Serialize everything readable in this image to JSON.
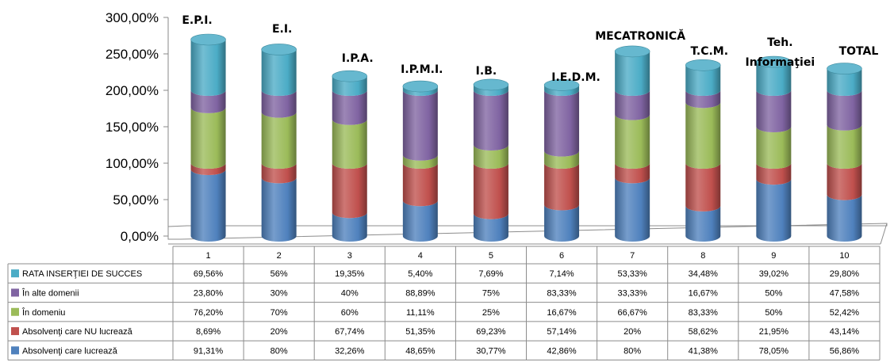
{
  "chart_data": {
    "type": "bar",
    "stacked": true,
    "style": "3d-cylinder",
    "ylim": [
      0,
      300
    ],
    "yticks": [
      "0,00%",
      "50,00%",
      "100,00%",
      "150,00%",
      "200,00%",
      "250,00%",
      "300,00%"
    ],
    "categories": [
      "1",
      "2",
      "3",
      "4",
      "5",
      "6",
      "7",
      "8",
      "9",
      "10"
    ],
    "category_names": [
      "E.P.I.",
      "E.I.",
      "I.P.A.",
      "I.P.M.I.",
      "I.B.",
      "I.E.D.M.",
      "MECATRONICĂ",
      "T.C.M.",
      "Teh. Informaţiei",
      "TOTAL"
    ],
    "series": [
      {
        "name": "Absolvenţi care lucrează",
        "color": "#4F81BD",
        "values": [
          91.31,
          80,
          32.26,
          48.65,
          30.77,
          42.86,
          80,
          41.38,
          78.05,
          56.86
        ],
        "labels": [
          "91,31%",
          "80%",
          "32,26%",
          "48,65%",
          "30,77%",
          "42,86%",
          "80%",
          "41,38%",
          "78,05%",
          "56,86%"
        ]
      },
      {
        "name": "Absolvenţi care NU lucrează",
        "color": "#C0504D",
        "values": [
          8.69,
          20,
          67.74,
          51.35,
          69.23,
          57.14,
          20,
          58.62,
          21.95,
          43.14
        ],
        "labels": [
          "8,69%",
          "20%",
          "67,74%",
          "51,35%",
          "69,23%",
          "57,14%",
          "20%",
          "58,62%",
          "21,95%",
          "43,14%"
        ]
      },
      {
        "name": "În domeniu",
        "color": "#9BBB59",
        "values": [
          76.2,
          70,
          60,
          11.11,
          25,
          16.67,
          66.67,
          83.33,
          50,
          52.42
        ],
        "labels": [
          "76,20%",
          "70%",
          "60%",
          "11,11%",
          "25%",
          "16,67%",
          "66,67%",
          "83,33%",
          "50%",
          "52,42%"
        ]
      },
      {
        "name": "În alte domenii",
        "color": "#8064A2",
        "values": [
          23.8,
          30,
          40,
          88.89,
          75,
          83.33,
          33.33,
          16.67,
          50,
          47.58
        ],
        "labels": [
          "23,80%",
          "30%",
          "40%",
          "88,89%",
          "75%",
          "83,33%",
          "33,33%",
          "16,67%",
          "50%",
          "47,58%"
        ]
      },
      {
        "name": "RATA INSERŢIEI DE SUCCES",
        "color": "#4BACC6",
        "values": [
          69.56,
          56,
          19.35,
          5.4,
          7.69,
          7.14,
          53.33,
          34.48,
          39.02,
          29.8
        ],
        "labels": [
          "69,56%",
          "56%",
          "19,35%",
          "5,40%",
          "7,69%",
          "7,14%",
          "53,33%",
          "34,48%",
          "39,02%",
          "29,80%"
        ]
      }
    ],
    "table_row_order": [
      4,
      3,
      2,
      1,
      0
    ]
  }
}
